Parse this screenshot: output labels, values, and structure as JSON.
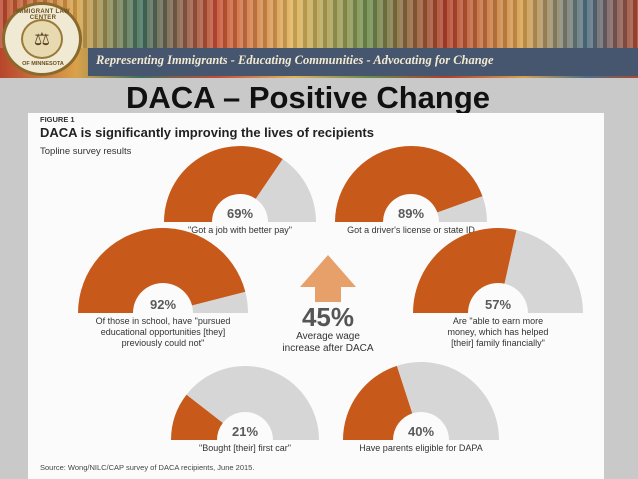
{
  "header": {
    "tagline": "Representing Immigrants - Educating Communities - Advocating for Change",
    "logo_top": "IMMIGRANT LAW CENTER",
    "logo_bottom": "OF MINNESOTA"
  },
  "slide": {
    "title": "DACA – Positive Change"
  },
  "figure": {
    "label": "FIGURE 1",
    "title": "DACA is significantly improving the lives of recipients",
    "subtitle": "Topline survey results",
    "source": "Source: Wong/NILC/CAP survey of DACA recipients, June 2015."
  },
  "colors": {
    "filled": "#c75a1b",
    "remaining": "#d6d6d6",
    "arrow": "#e7a06a"
  },
  "chart_data": {
    "type": "gauge",
    "title": "DACA is significantly improving the lives of recipients",
    "subtitle": "Topline survey results",
    "gauges": [
      {
        "value": 69,
        "label": "69%",
        "caption": [
          "\"Got a job with better pay\""
        ]
      },
      {
        "value": 89,
        "label": "89%",
        "caption": [
          "Got a driver's license or state ID"
        ]
      },
      {
        "value": 92,
        "label": "92%",
        "caption": [
          "Of those in school, have \"pursued",
          "educational opportunities [they]",
          "previously could not\""
        ]
      },
      {
        "value": 57,
        "label": "57%",
        "caption": [
          "Are \"able to earn more",
          "money, which has helped",
          "[their] family financially\""
        ]
      },
      {
        "value": 21,
        "label": "21%",
        "caption": [
          "\"Bought [their] first car\""
        ]
      },
      {
        "value": 40,
        "label": "40%",
        "caption": [
          "Have parents eligible for DAPA"
        ]
      }
    ],
    "center": {
      "value": 45,
      "label": "45%",
      "caption": [
        "Average wage",
        "increase after DACA"
      ]
    }
  }
}
